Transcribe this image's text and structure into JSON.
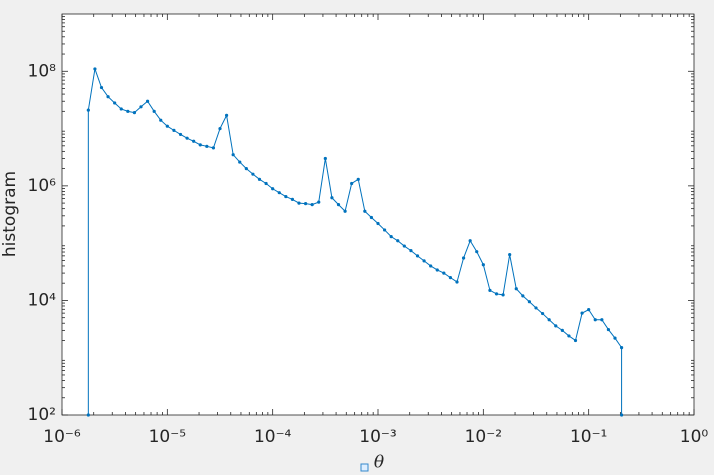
{
  "chart_data": {
    "type": "line",
    "xlabel": "θ",
    "ylabel": "histogram",
    "x": [
      1.778e-06,
      1.778e-06,
      2.054e-06,
      2.371e-06,
      2.738e-06,
      3.162e-06,
      3.652e-06,
      4.217e-06,
      4.87e-06,
      5.623e-06,
      6.494e-06,
      7.499e-06,
      8.66e-06,
      1e-05,
      1.155e-05,
      1.334e-05,
      1.54e-05,
      1.778e-05,
      2.054e-05,
      2.371e-05,
      2.738e-05,
      3.162e-05,
      3.652e-05,
      4.217e-05,
      4.87e-05,
      5.623e-05,
      6.494e-05,
      7.499e-05,
      8.66e-05,
      0.0001,
      0.0001155,
      0.0001334,
      0.000154,
      0.0001778,
      0.0002054,
      0.0002371,
      0.0002738,
      0.0003162,
      0.0003652,
      0.0004217,
      0.000487,
      0.0005623,
      0.0006494,
      0.0007499,
      0.000866,
      0.001,
      0.001155,
      0.001334,
      0.00154,
      0.001778,
      0.002054,
      0.002371,
      0.002738,
      0.003162,
      0.003652,
      0.004217,
      0.00487,
      0.005623,
      0.006494,
      0.007499,
      0.00866,
      0.01,
      0.01155,
      0.01334,
      0.0154,
      0.01778,
      0.02054,
      0.02371,
      0.02738,
      0.03162,
      0.03652,
      0.04217,
      0.0487,
      0.05623,
      0.06494,
      0.07499,
      0.0866,
      0.1,
      0.1155,
      0.1334,
      0.154,
      0.1778,
      0.2054,
      0.2054
    ],
    "values": [
      100,
      21000000.0,
      110000000.0,
      52000000.0,
      36000000.0,
      28000000.0,
      22000000.0,
      20000000.0,
      19000000.0,
      24000000.0,
      30000000.0,
      20000000.0,
      14000000.0,
      11000000.0,
      9300000.0,
      7900000.0,
      6800000.0,
      6000000.0,
      5200000.0,
      4900000.0,
      4600000.0,
      10000000.0,
      17000000.0,
      3500000.0,
      2600000.0,
      2000000.0,
      1600000.0,
      1300000.0,
      1100000.0,
      890000.0,
      760000.0,
      650000.0,
      580000.0,
      500000.0,
      490000.0,
      470000.0,
      520000.0,
      3000000.0,
      620000.0,
      470000.0,
      360000.0,
      1100000.0,
      1300000.0,
      360000.0,
      280000.0,
      220000.0,
      170000.0,
      130000.0,
      110000.0,
      89000.0,
      74000.0,
      60000.0,
      49000.0,
      40000.0,
      34000.0,
      30000.0,
      25000.0,
      21000.0,
      55000.0,
      110000.0,
      71000.0,
      42000.0,
      15000.0,
      13000.0,
      12500.0,
      63000.0,
      16000.0,
      12000.0,
      9500.0,
      7400.0,
      5900.0,
      4600.0,
      3600.0,
      3000.0,
      2400.0,
      2000.0,
      6000.0,
      6900.0,
      4600.0,
      4600.0,
      3100.0,
      2200.0,
      1500.0,
      100
    ],
    "color": "#0072bd",
    "xscale": "log",
    "yscale": "log",
    "xlim": [
      1e-06,
      1
    ],
    "ylim": [
      100,
      1000000000.0
    ],
    "xticks": [
      {
        "value": 1e-06,
        "label": "10⁻⁶"
      },
      {
        "value": 1e-05,
        "label": "10⁻⁵"
      },
      {
        "value": 0.0001,
        "label": "10⁻⁴"
      },
      {
        "value": 0.001,
        "label": "10⁻³"
      },
      {
        "value": 0.01,
        "label": "10⁻²"
      },
      {
        "value": 0.1,
        "label": "10⁻¹"
      },
      {
        "value": 1,
        "label": "10⁰"
      }
    ],
    "yticks": [
      {
        "value": 100,
        "label": "10²"
      },
      {
        "value": 10000.0,
        "label": "10⁴"
      },
      {
        "value": 1000000.0,
        "label": "10⁶"
      },
      {
        "value": 100000000.0,
        "label": "10⁸"
      }
    ]
  }
}
